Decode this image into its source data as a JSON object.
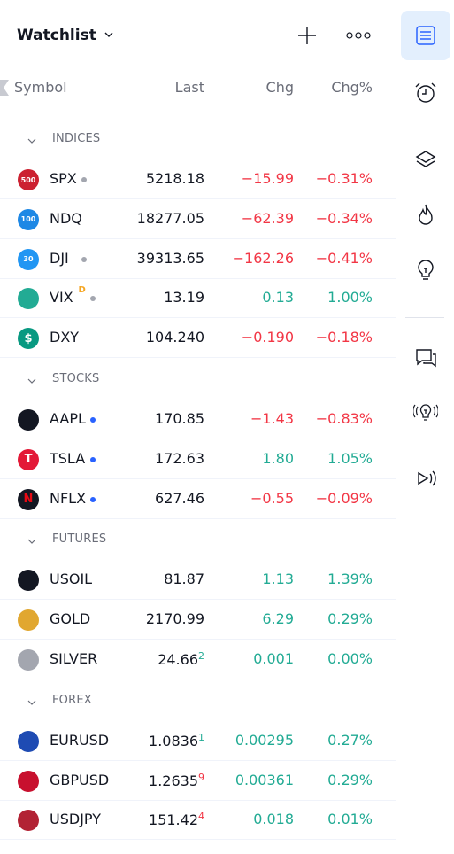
{
  "header": {
    "title": "Watchlist"
  },
  "columns": {
    "symbol": "Symbol",
    "last": "Last",
    "chg": "Chg",
    "chgp": "Chg%"
  },
  "sections": [
    {
      "name": "INDICES",
      "rows": [
        {
          "symbol": "SPX",
          "icon": "spx-500-icon",
          "icon_label": "500",
          "icon_color": "#cc2131",
          "last": "5218.18",
          "chg": "−15.99",
          "chgp": "−0.31%",
          "dir": "neg",
          "dot": "gray"
        },
        {
          "symbol": "NDQ",
          "icon": "ndq-100-icon",
          "icon_label": "100",
          "icon_color": "#1e88e5",
          "last": "18277.05",
          "chg": "−62.39",
          "chgp": "−0.34%",
          "dir": "neg"
        },
        {
          "symbol": "DJI",
          "icon": "dji-30-icon",
          "icon_label": "30",
          "icon_color": "#2196f3",
          "last": "39313.65",
          "chg": "−162.26",
          "chgp": "−0.41%",
          "dir": "neg",
          "dot": "gray"
        },
        {
          "symbol": "VIX",
          "icon": "vix-icon",
          "icon_label": "",
          "icon_color": "#22ab94",
          "last": "13.19",
          "chg": "0.13",
          "chgp": "1.00%",
          "dir": "pos",
          "dot": "gray",
          "badge": "D"
        },
        {
          "symbol": "DXY",
          "icon": "dollar-icon",
          "icon_label": "$",
          "icon_color": "#089981",
          "last": "104.240",
          "last_color": "pos",
          "chg": "−0.190",
          "chgp": "−0.18%",
          "dir": "neg"
        }
      ]
    },
    {
      "name": "STOCKS",
      "rows": [
        {
          "symbol": "AAPL",
          "icon": "apple-icon",
          "icon_label": "",
          "icon_color": "#131722",
          "last": "170.85",
          "chg": "−1.43",
          "chgp": "−0.83%",
          "dir": "neg",
          "dot": "blue"
        },
        {
          "symbol": "TSLA",
          "icon": "tesla-icon",
          "icon_label": "T",
          "icon_color": "#e31937",
          "last": "172.63",
          "chg": "1.80",
          "chgp": "1.05%",
          "dir": "pos",
          "dot": "blue"
        },
        {
          "symbol": "NFLX",
          "icon": "netflix-icon",
          "icon_label": "N",
          "icon_color": "#131722",
          "label_color": "#e50914",
          "last": "627.46",
          "chg": "−0.55",
          "chgp": "−0.09%",
          "dir": "neg",
          "dot": "blue"
        }
      ]
    },
    {
      "name": "FUTURES",
      "rows": [
        {
          "symbol": "USOIL",
          "icon": "oil-drop-icon",
          "icon_label": "",
          "icon_color": "#131722",
          "last": "81.87",
          "chg": "1.13",
          "chgp": "1.39%",
          "dir": "pos"
        },
        {
          "symbol": "GOLD",
          "icon": "gold-bars-icon",
          "icon_label": "",
          "icon_color": "#e1a730",
          "last": "2170.99",
          "chg": "6.29",
          "chgp": "0.29%",
          "dir": "pos"
        },
        {
          "symbol": "SILVER",
          "icon": "silver-bars-icon",
          "icon_label": "",
          "icon_color": "#a3a6af",
          "last": "24.66",
          "last_frac": "2",
          "last_frac_color": "pos",
          "chg": "0.001",
          "chgp": "0.00%",
          "dir": "pos"
        }
      ]
    },
    {
      "name": "FOREX",
      "rows": [
        {
          "symbol": "EURUSD",
          "icon": "eur-usd-flags-icon",
          "icon_label": "",
          "icon_color": "#1e4bb3",
          "last": "1.0836",
          "last_frac": "1",
          "last_frac_color": "pos",
          "chg": "0.00295",
          "chgp": "0.27%",
          "dir": "pos"
        },
        {
          "symbol": "GBPUSD",
          "icon": "gbp-usd-flags-icon",
          "icon_label": "",
          "icon_color": "#c8102e",
          "last": "1.2635",
          "last_frac": "9",
          "last_frac_color": "neg",
          "chg": "0.00361",
          "chgp": "0.29%",
          "dir": "pos"
        },
        {
          "symbol": "USDJPY",
          "icon": "usd-jpy-flags-icon",
          "icon_label": "",
          "icon_color": "#b22234",
          "last": "151.42",
          "last_frac": "4",
          "last_frac_color": "neg",
          "chg": "0.018",
          "chgp": "0.01%",
          "dir": "pos"
        }
      ]
    }
  ],
  "rail": [
    {
      "name": "watchlist-icon",
      "active": true
    },
    {
      "name": "alarm-clock-icon"
    },
    {
      "name": "layers-icon"
    },
    {
      "name": "flame-icon"
    },
    {
      "name": "lightbulb-icon"
    },
    {
      "name": "chat-icon"
    },
    {
      "name": "ideas-stream-icon"
    },
    {
      "name": "play-stream-icon"
    }
  ],
  "colors": {
    "negative": "#f23645",
    "positive": "#22ab94",
    "accent": "#2962ff",
    "active_bg": "#e3effd"
  }
}
